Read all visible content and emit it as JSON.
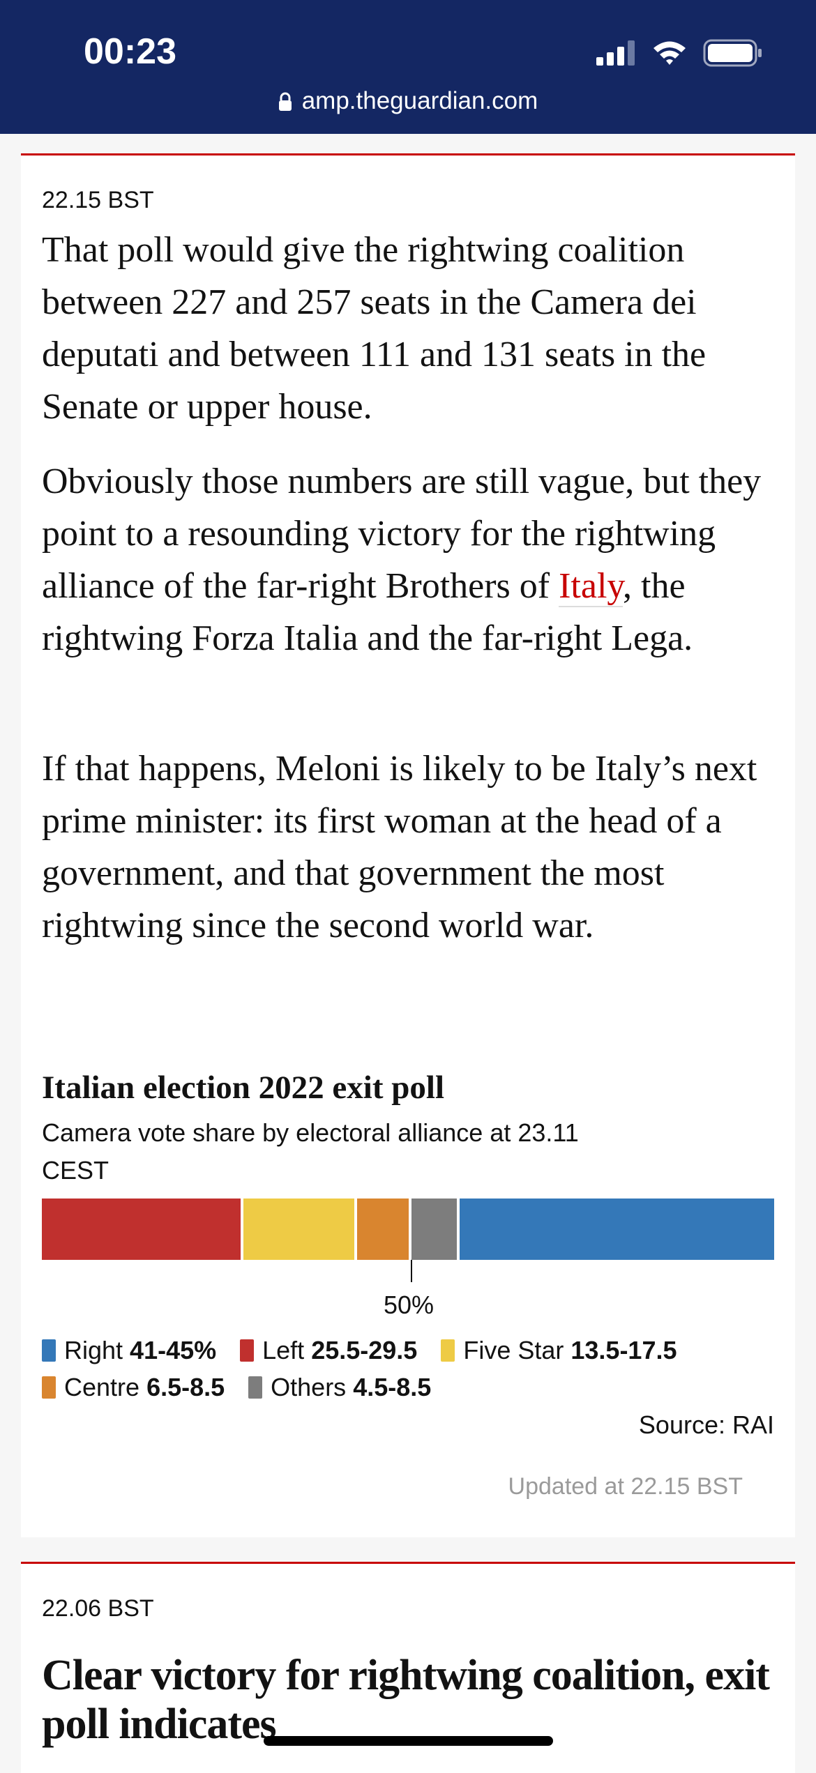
{
  "status_bar": {
    "time": "00:23",
    "url": "amp.theguardian.com"
  },
  "entry1": {
    "timestamp": "22.15 BST",
    "paragraphs": [
      "That poll would give the rightwing coalition between 227 and 257 seats in the Camera dei deputati and between 111 and 131 seats in the Senate or upper house.",
      "Obviously those numbers are still vague, but they point to a resounding victory for the rightwing alliance of the far-right",
      "If that happens, Meloni is likely to be Italy’s next prime minister: its first woman at the head of a government, and that government the most rightwing since the second world war."
    ],
    "para2_prefix": "Obviously those numbers are still vague, but they point to a resounding victory for the rightwing alliance of the far-right Brothers of ",
    "para2_link": "Italy",
    "para2_suffix": ", the rightwing Forza Italia and the far-right Lega.",
    "updated": "Updated at 22.15 BST"
  },
  "chart_data": {
    "type": "bar",
    "title": "Italian election 2022 exit poll",
    "subtitle": "Camera vote share by electoral alliance at 23.11 CEST",
    "midline_label": "50%",
    "source": "Source: RAI",
    "series": [
      {
        "name": "Left",
        "range": "25.5-29.5",
        "value": 27.5,
        "color": "#c0302e"
      },
      {
        "name": "Five Star",
        "range": "13.5-17.5",
        "value": 15.5,
        "color": "#eecb45"
      },
      {
        "name": "Centre",
        "range": "6.5-8.5",
        "value": 7.5,
        "color": "#d9852f"
      },
      {
        "name": "Others",
        "range": "4.5-8.5",
        "value": 6.5,
        "color": "#7d7d7d"
      },
      {
        "name": "Right",
        "range": "41-45%",
        "value": 43,
        "color": "#3478b8"
      }
    ],
    "legend_row1": [
      {
        "name": "Right",
        "range": "41-45%",
        "color": "#3478b8"
      },
      {
        "name": "Left",
        "range": "25.5-29.5",
        "color": "#c0302e"
      },
      {
        "name": "Five Star",
        "range": "13.5-17.5",
        "color": "#eecb45"
      }
    ],
    "legend_row2": [
      {
        "name": "Centre",
        "range": "6.5-8.5",
        "color": "#d9852f"
      },
      {
        "name": "Others",
        "range": "4.5-8.5",
        "color": "#7d7d7d"
      }
    ]
  },
  "entry2": {
    "timestamp": "22.06 BST",
    "headline": "Clear victory for rightwing coalition, exit poll indicates"
  }
}
